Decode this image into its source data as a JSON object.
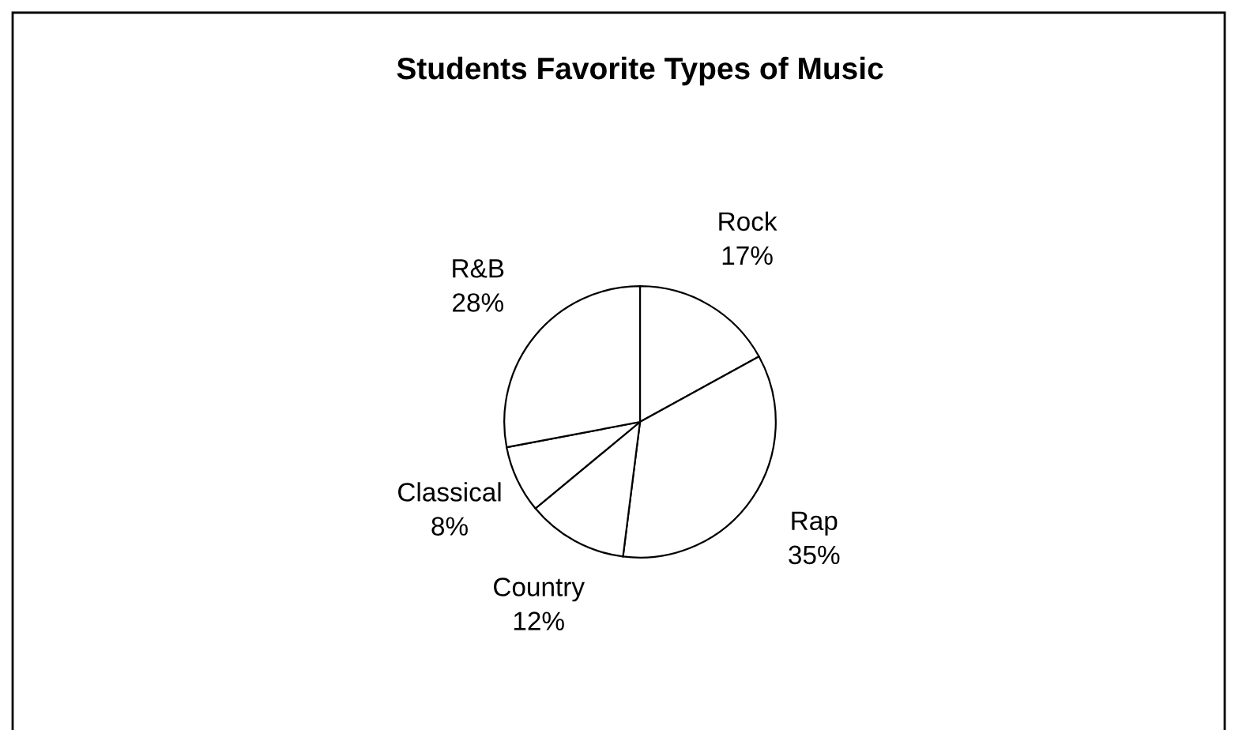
{
  "chart_data": {
    "type": "pie",
    "title": "Students Favorite Types of Music",
    "categories": [
      "Rock",
      "Rap",
      "Country",
      "Classical",
      "R&B"
    ],
    "values": [
      17,
      35,
      12,
      8,
      28
    ],
    "value_labels": [
      "17%",
      "35%",
      "12%",
      "8%",
      "28%"
    ],
    "colors": [
      "#ffffff",
      "#ffffff",
      "#ffffff",
      "#ffffff",
      "#ffffff"
    ],
    "legend": false
  }
}
